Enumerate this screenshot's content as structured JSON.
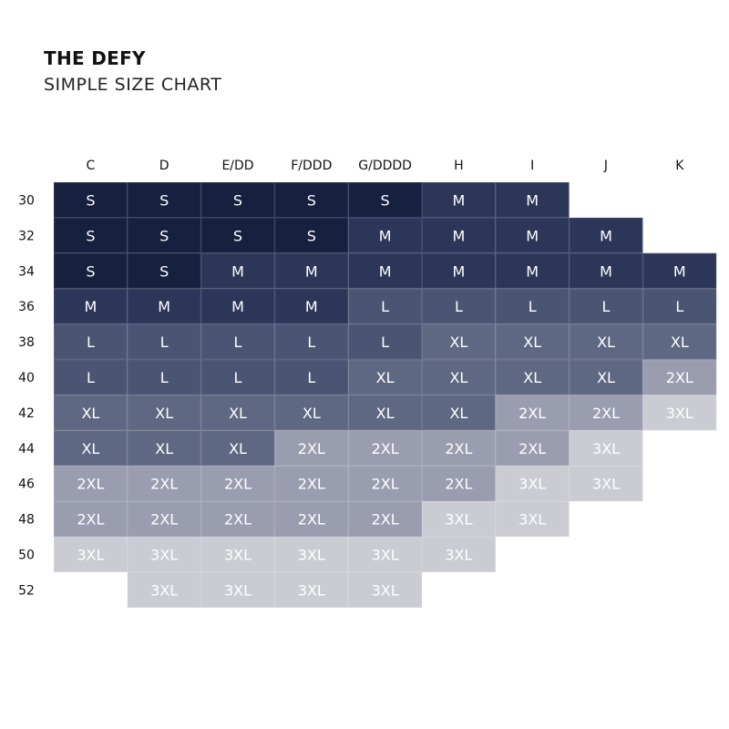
{
  "header": {
    "title": "THE DEFY",
    "subtitle": "SIMPLE SIZE CHART"
  },
  "chart_data": {
    "type": "table",
    "title": "THE DEFY",
    "subtitle": "SIMPLE SIZE CHART",
    "columns": [
      "C",
      "D",
      "E/DD",
      "F/DDD",
      "G/DDDD",
      "H",
      "I",
      "J",
      "K"
    ],
    "rows": [
      "30",
      "32",
      "34",
      "36",
      "38",
      "40",
      "42",
      "44",
      "46",
      "48",
      "50",
      "52"
    ],
    "cells": [
      [
        "S",
        "S",
        "S",
        "S",
        "S",
        "M",
        "M",
        "",
        ""
      ],
      [
        "S",
        "S",
        "S",
        "S",
        "M",
        "M",
        "M",
        "M",
        ""
      ],
      [
        "S",
        "S",
        "M",
        "M",
        "M",
        "M",
        "M",
        "M",
        "M"
      ],
      [
        "M",
        "M",
        "M",
        "M",
        "L",
        "L",
        "L",
        "L",
        "L"
      ],
      [
        "L",
        "L",
        "L",
        "L",
        "L",
        "XL",
        "XL",
        "XL",
        "XL"
      ],
      [
        "L",
        "L",
        "L",
        "L",
        "XL",
        "XL",
        "XL",
        "XL",
        "2XL"
      ],
      [
        "XL",
        "XL",
        "XL",
        "XL",
        "XL",
        "XL",
        "2XL",
        "2XL",
        "3XL"
      ],
      [
        "XL",
        "XL",
        "XL",
        "2XL",
        "2XL",
        "2XL",
        "2XL",
        "3XL",
        ""
      ],
      [
        "2XL",
        "2XL",
        "2XL",
        "2XL",
        "2XL",
        "2XL",
        "3XL",
        "3XL",
        ""
      ],
      [
        "2XL",
        "2XL",
        "2XL",
        "2XL",
        "2XL",
        "3XL",
        "3XL",
        "",
        ""
      ],
      [
        "3XL",
        "3XL",
        "3XL",
        "3XL",
        "3XL",
        "3XL",
        "",
        "",
        ""
      ],
      [
        "",
        "3XL",
        "3XL",
        "3XL",
        "3XL",
        "",
        "",
        "",
        ""
      ]
    ],
    "size_colors": {
      "S": "#16203f",
      "M": "#2b3658",
      "L": "#4a5473",
      "XL": "#5f6882",
      "2XL": "#9a9daf",
      "3XL": "#cbccd3"
    }
  }
}
